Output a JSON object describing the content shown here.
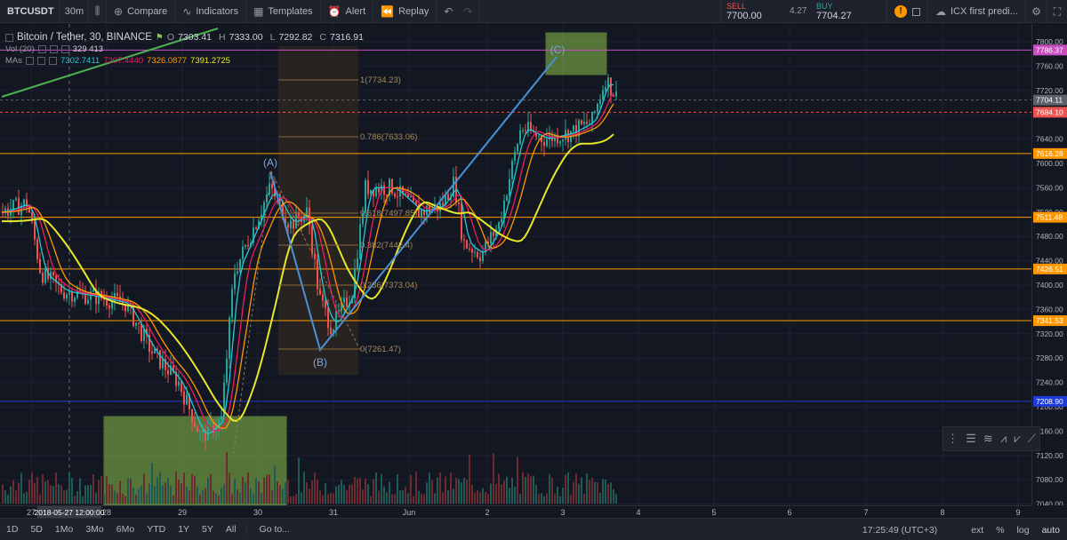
{
  "toolbar": {
    "symbol": "BTCUSDT",
    "interval": "30m",
    "compare": "Compare",
    "indicators": "Indicators",
    "templates": "Templates",
    "alert": "Alert",
    "replay": "Replay",
    "sell_label": "SELL",
    "sell_price": "7700.00",
    "spread": "4.27",
    "buy_label": "BUY",
    "buy_price": "7704.27",
    "layout_name": "ICX first predi..."
  },
  "legend": {
    "title": "Bitcoin / Tether, 30, BINANCE",
    "o_label": "O",
    "o": "7303.41",
    "h_label": "H",
    "h": "7333.00",
    "l_label": "L",
    "l": "7292.82",
    "c_label": "C",
    "c": "7316.91",
    "vol_label": "Vol (20)",
    "vol_values": "329  413",
    "mas_label": "MAs",
    "ma_values": [
      "7302.7411",
      "7307.4440",
      "7326.0877",
      "7391.2725"
    ],
    "ma_colors": [
      "#26c6da",
      "#e91e63",
      "#ff9800",
      "#e6e82b"
    ]
  },
  "price_scale": {
    "ticks": [
      "7800.00",
      "7760.00",
      "7720.00",
      "7680.00",
      "7640.00",
      "7600.00",
      "7560.00",
      "7520.00",
      "7480.00",
      "7440.00",
      "7400.00",
      "7360.00",
      "7320.00",
      "7280.00",
      "7240.00",
      "7200.00",
      "7160.00",
      "7120.00",
      "7080.00",
      "7040.00",
      "7000.00"
    ],
    "labels": [
      {
        "text": "7786.37",
        "color": "#c850c0"
      },
      {
        "text": "7704.11",
        "color": "#5d606b"
      },
      {
        "text": "7684.10",
        "color": "#ef5350"
      },
      {
        "text": "7616.28",
        "color": "#ff9800"
      },
      {
        "text": "7511.48",
        "color": "#ff9800"
      },
      {
        "text": "7426.51",
        "color": "#ff9800"
      },
      {
        "text": "7341.53",
        "color": "#ff9800"
      },
      {
        "text": "7208.90",
        "color": "#1e3ad8"
      }
    ]
  },
  "time_scale": {
    "ticks": [
      "27",
      "28",
      "29",
      "30",
      "31",
      "Jun",
      "2",
      "3",
      "4",
      "5",
      "6",
      "7",
      "8",
      "9"
    ],
    "cursor_label": "2018-05-27 12:00:00"
  },
  "annotations": {
    "wave_a": "(A)",
    "wave_b": "(B)",
    "wave_c": "(C)",
    "fib_levels": [
      "1(7734.23)",
      "0.786(7633.06)",
      "0.618(7497.85)",
      "0.382(7442.4)",
      "0.236(7373.04)",
      "0(7261.47)"
    ]
  },
  "bottom": {
    "ranges": [
      "1D",
      "5D",
      "1Mo",
      "3Mo",
      "6Mo",
      "YTD",
      "1Y",
      "5Y",
      "All"
    ],
    "goto": "Go to...",
    "time": "17:25:49 (UTC+3)",
    "ext": "ext",
    "percent": "%",
    "log": "log",
    "auto": "auto"
  },
  "colors": {
    "background": "#131722",
    "up": "#26a69a",
    "down": "#ef5350",
    "ma_fast": "#26c6da",
    "ma_mid": "#e91e63",
    "ma_slow": "#ff9800",
    "ma_long": "#e6e82b",
    "level": "#ff9800",
    "wave": "#4a90d9",
    "zone": "#8bc34a"
  }
}
